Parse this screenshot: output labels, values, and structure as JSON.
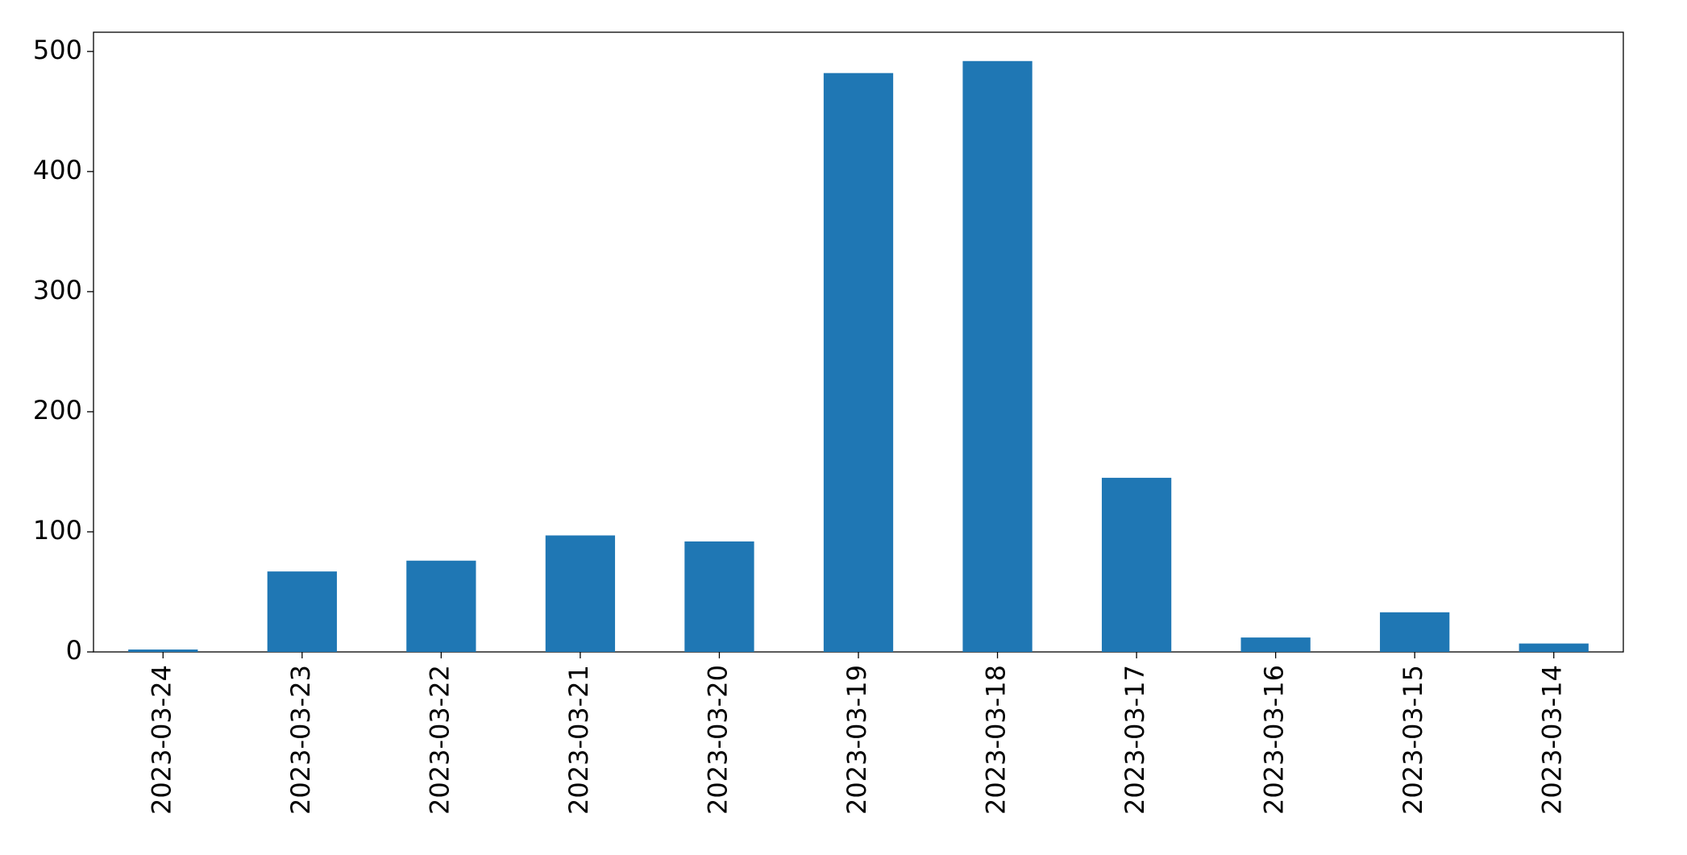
{
  "chart_data": {
    "type": "bar",
    "categories": [
      "2023-03-24",
      "2023-03-23",
      "2023-03-22",
      "2023-03-21",
      "2023-03-20",
      "2023-03-19",
      "2023-03-18",
      "2023-03-17",
      "2023-03-16",
      "2023-03-15",
      "2023-03-14"
    ],
    "values": [
      2,
      67,
      76,
      97,
      92,
      482,
      492,
      145,
      12,
      33,
      7
    ],
    "color": "#1f77b4",
    "ylim": [
      0,
      516
    ],
    "yticks": [
      0,
      100,
      200,
      300,
      400,
      500
    ],
    "grid": false
  }
}
